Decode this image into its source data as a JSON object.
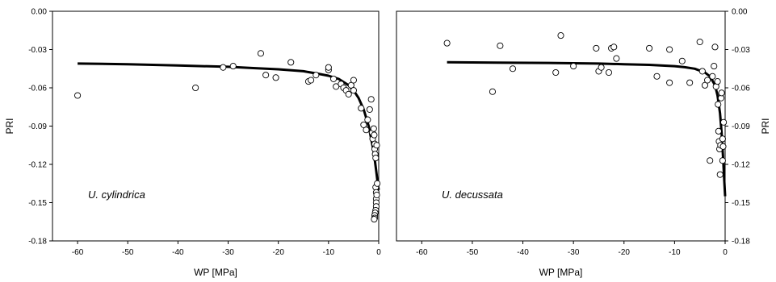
{
  "chart_data": [
    {
      "type": "scatter",
      "annotation": "U. cylindrica",
      "xlabel": "WP [MPa]",
      "ylabel": "PRI",
      "xlim": [
        -65,
        0
      ],
      "ylim": [
        -0.18,
        0
      ],
      "x_ticks": [
        -60,
        -50,
        -40,
        -30,
        -20,
        -10,
        0
      ],
      "x_tick_labels": [
        "-60",
        "-50",
        "-40",
        "-30",
        "-20",
        "-10",
        "0"
      ],
      "y_ticks": [
        0,
        -0.03,
        -0.06,
        -0.09,
        -0.12,
        -0.15,
        -0.18
      ],
      "y_tick_labels": [
        "0.00",
        "-0.03",
        "-0.06",
        "-0.09",
        "-0.12",
        "-0.15",
        "-0.18"
      ],
      "y_axis_side": "left",
      "points": [
        [
          -60,
          -0.066
        ],
        [
          -36.5,
          -0.06
        ],
        [
          -31,
          -0.044
        ],
        [
          -29,
          -0.043
        ],
        [
          -23.5,
          -0.033
        ],
        [
          -22.5,
          -0.05
        ],
        [
          -20.5,
          -0.052
        ],
        [
          -17.5,
          -0.04
        ],
        [
          -14,
          -0.055
        ],
        [
          -13.5,
          -0.054
        ],
        [
          -12.5,
          -0.05
        ],
        [
          -10,
          -0.046
        ],
        [
          -10,
          -0.044
        ],
        [
          -9,
          -0.053
        ],
        [
          -8.5,
          -0.059
        ],
        [
          -7.5,
          -0.057
        ],
        [
          -7,
          -0.06
        ],
        [
          -6.5,
          -0.062
        ],
        [
          -6,
          -0.065
        ],
        [
          -5.5,
          -0.058
        ],
        [
          -5,
          -0.054
        ],
        [
          -5,
          -0.062
        ],
        [
          -3.5,
          -0.076
        ],
        [
          -3,
          -0.089
        ],
        [
          -2.5,
          -0.093
        ],
        [
          -2.2,
          -0.085
        ],
        [
          -1.8,
          -0.077
        ],
        [
          -1.5,
          -0.069
        ],
        [
          -1.3,
          -0.095
        ],
        [
          -1.2,
          -0.1
        ],
        [
          -1,
          -0.092
        ],
        [
          -0.9,
          -0.097
        ],
        [
          -0.8,
          -0.104
        ],
        [
          -0.8,
          -0.108
        ],
        [
          -0.7,
          -0.112
        ],
        [
          -0.6,
          -0.115
        ],
        [
          -0.6,
          -0.138
        ],
        [
          -0.5,
          -0.142
        ],
        [
          -0.5,
          -0.147
        ],
        [
          -0.5,
          -0.15
        ],
        [
          -0.5,
          -0.153
        ],
        [
          -0.6,
          -0.156
        ],
        [
          -0.7,
          -0.158
        ],
        [
          -0.8,
          -0.16
        ],
        [
          -0.8,
          -0.162
        ],
        [
          -0.9,
          -0.163
        ],
        [
          -0.3,
          -0.135
        ],
        [
          -0.4,
          -0.105
        ],
        [
          -0.4,
          -0.144
        ]
      ],
      "curve": [
        [
          -60,
          -0.041
        ],
        [
          -50,
          -0.0415
        ],
        [
          -40,
          -0.0425
        ],
        [
          -30,
          -0.0435
        ],
        [
          -25,
          -0.0445
        ],
        [
          -20,
          -0.0455
        ],
        [
          -15,
          -0.047
        ],
        [
          -12,
          -0.049
        ],
        [
          -10,
          -0.0505
        ],
        [
          -8,
          -0.053
        ],
        [
          -6,
          -0.058
        ],
        [
          -5,
          -0.062
        ],
        [
          -4,
          -0.068
        ],
        [
          -3,
          -0.077
        ],
        [
          -2,
          -0.09
        ],
        [
          -1.5,
          -0.1
        ],
        [
          -1,
          -0.11
        ],
        [
          -0.5,
          -0.125
        ],
        [
          -0.2,
          -0.135
        ],
        [
          0,
          -0.14
        ]
      ]
    },
    {
      "type": "scatter",
      "annotation": "U. decussata",
      "xlabel": "WP [MPa]",
      "ylabel": "PRI",
      "xlim": [
        -65,
        0
      ],
      "ylim": [
        -0.18,
        0
      ],
      "x_ticks": [
        -60,
        -50,
        -40,
        -30,
        -20,
        -10,
        0
      ],
      "x_tick_labels": [
        "-60",
        "-50",
        "-40",
        "-30",
        "-20",
        "-10",
        "0"
      ],
      "y_ticks": [
        0,
        -0.03,
        -0.06,
        -0.09,
        -0.12,
        -0.15,
        -0.18
      ],
      "y_tick_labels": [
        "0.00",
        "-0.03",
        "-0.06",
        "-0.09",
        "-0.12",
        "-0.15",
        "-0.18"
      ],
      "y_axis_side": "right",
      "points": [
        [
          -55,
          -0.025
        ],
        [
          -46,
          -0.063
        ],
        [
          -44.5,
          -0.027
        ],
        [
          -42,
          -0.045
        ],
        [
          -33.5,
          -0.048
        ],
        [
          -32.5,
          -0.019
        ],
        [
          -30,
          -0.043
        ],
        [
          -25.5,
          -0.029
        ],
        [
          -25,
          -0.047
        ],
        [
          -24.5,
          -0.044
        ],
        [
          -23,
          -0.048
        ],
        [
          -22.5,
          -0.029
        ],
        [
          -22,
          -0.028
        ],
        [
          -21.5,
          -0.037
        ],
        [
          -15,
          -0.029
        ],
        [
          -13.5,
          -0.051
        ],
        [
          -11,
          -0.03
        ],
        [
          -11,
          -0.056
        ],
        [
          -8.5,
          -0.039
        ],
        [
          -7,
          -0.056
        ],
        [
          -5,
          -0.024
        ],
        [
          -4.5,
          -0.047
        ],
        [
          -4,
          -0.058
        ],
        [
          -3.5,
          -0.054
        ],
        [
          -3,
          -0.117
        ],
        [
          -2.5,
          -0.051
        ],
        [
          -2.2,
          -0.043
        ],
        [
          -2,
          -0.028
        ],
        [
          -1.8,
          -0.059
        ],
        [
          -1.5,
          -0.055
        ],
        [
          -1.4,
          -0.073
        ],
        [
          -1.3,
          -0.094
        ],
        [
          -1.2,
          -0.102
        ],
        [
          -1.1,
          -0.108
        ],
        [
          -1,
          -0.128
        ],
        [
          -0.9,
          -0.105
        ],
        [
          -0.8,
          -0.068
        ],
        [
          -0.7,
          -0.064
        ],
        [
          -0.5,
          -0.1
        ],
        [
          -0.5,
          -0.117
        ],
        [
          -0.4,
          -0.106
        ],
        [
          -0.3,
          -0.087
        ]
      ],
      "curve": [
        [
          -55,
          -0.04
        ],
        [
          -45,
          -0.0402
        ],
        [
          -35,
          -0.0405
        ],
        [
          -25,
          -0.041
        ],
        [
          -20,
          -0.0415
        ],
        [
          -15,
          -0.042
        ],
        [
          -10,
          -0.043
        ],
        [
          -8,
          -0.0438
        ],
        [
          -6,
          -0.045
        ],
        [
          -4,
          -0.048
        ],
        [
          -3,
          -0.051
        ],
        [
          -2,
          -0.058
        ],
        [
          -1.5,
          -0.066
        ],
        [
          -1,
          -0.08
        ],
        [
          -0.7,
          -0.095
        ],
        [
          -0.4,
          -0.115
        ],
        [
          -0.2,
          -0.13
        ],
        [
          0,
          -0.145
        ]
      ]
    }
  ]
}
